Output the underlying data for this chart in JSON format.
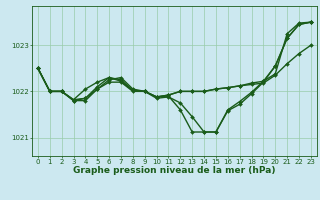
{
  "title": "Graphe pression niveau de la mer (hPa)",
  "bg_color": "#cce8f0",
  "line_color": "#1a5c1a",
  "grid_color": "#99ccaa",
  "ylim": [
    1020.6,
    1023.85
  ],
  "yticks": [
    1021,
    1022,
    1023
  ],
  "series": [
    [
      1022.5,
      1022.0,
      1022.0,
      1021.8,
      1021.85,
      1022.05,
      1022.2,
      1022.2,
      1022.0,
      1022.0,
      1021.85,
      1021.88,
      1021.75,
      1021.45,
      1021.12,
      1021.12,
      1021.58,
      1021.72,
      1021.95,
      1022.2,
      1022.55,
      1023.15,
      1023.45,
      1023.5
    ],
    [
      1022.5,
      1022.0,
      1022.0,
      1021.8,
      1021.8,
      1022.05,
      1022.25,
      1022.3,
      1022.05,
      1022.0,
      1021.88,
      1021.92,
      1022.0,
      1022.0,
      1022.0,
      1022.05,
      1022.08,
      1022.12,
      1022.15,
      1022.18,
      1022.35,
      1022.6,
      1022.82,
      1023.0
    ],
    [
      1022.5,
      1022.0,
      1022.0,
      1021.82,
      1022.05,
      1022.2,
      1022.3,
      1022.22,
      1022.02,
      1022.0,
      1021.88,
      1021.92,
      1022.0,
      1022.0,
      1022.0,
      1022.05,
      1022.08,
      1022.12,
      1022.18,
      1022.22,
      1022.38,
      1023.25,
      1023.48,
      1023.5
    ],
    [
      1022.5,
      1022.0,
      1022.0,
      1021.82,
      1021.85,
      1022.1,
      1022.3,
      1022.25,
      1022.02,
      1022.0,
      1021.88,
      1021.9,
      1021.6,
      1021.12,
      1021.12,
      1021.12,
      1021.6,
      1021.78,
      1021.98,
      1022.22,
      1022.55,
      1023.15,
      1023.45,
      1023.5
    ]
  ],
  "marker": "D",
  "markersize": 2.0,
  "linewidth": 1.0,
  "title_fontsize": 6.5,
  "tick_fontsize": 5.0,
  "x_ticks": [
    0,
    1,
    2,
    3,
    4,
    5,
    6,
    7,
    8,
    9,
    10,
    11,
    12,
    13,
    14,
    15,
    16,
    17,
    18,
    19,
    20,
    21,
    22,
    23
  ]
}
